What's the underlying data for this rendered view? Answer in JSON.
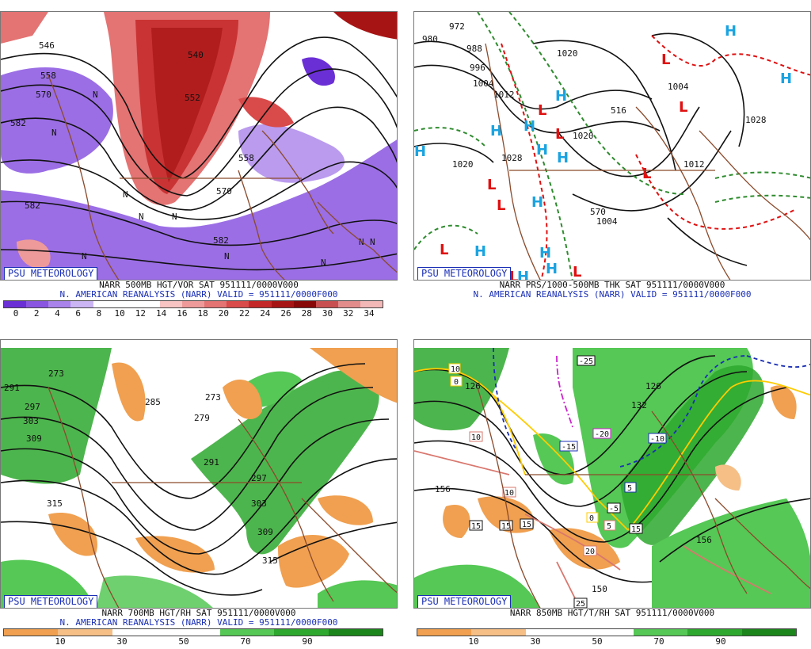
{
  "panels": [
    {
      "badge": "PSU METEOROLOGY",
      "line1": "NARR 500MB HGT/VOR SAT 951111/0000V000",
      "line2": "N. AMERICAN REANALYSIS (NARR) VALID = 951111/0000F000",
      "colorbar_ticks": [
        "0",
        "2",
        "4",
        "6",
        "8",
        "10",
        "12",
        "14",
        "16",
        "18",
        "20",
        "22",
        "24",
        "26",
        "28",
        "30",
        "32",
        "34"
      ],
      "colorbar_colors": [
        "#6b2fd6",
        "#8a55e0",
        "#a982ea",
        "#cbb5f2",
        "#ffffff",
        "#ffffff",
        "#ffffff",
        "#f7c3c3",
        "#ee9a9a",
        "#e47373",
        "#d94a4a",
        "#c42828",
        "#a71414",
        "#880808",
        "#c95050",
        "#e28c8c",
        "#f2b8b8"
      ],
      "contour_labels": [
        "546",
        "558",
        "570",
        "582",
        "582",
        "540",
        "552",
        "558",
        "570",
        "582"
      ],
      "vort_max_marks": [
        "N",
        "N",
        "N",
        "N",
        "N",
        "N",
        "N",
        "N",
        "N",
        "N"
      ]
    },
    {
      "badge": "PSU METEOROLOGY",
      "line1": "NARR PRS/1000-500MB THK SAT 951111/0000V000",
      "line2": "N. AMERICAN REANALYSIS (NARR) VALID = 951111/0000F000",
      "contour_labels": [
        "972",
        "980",
        "988",
        "996",
        "1004",
        "1012",
        "1020",
        "1020",
        "1028",
        "1020",
        "1004",
        "1004",
        "1012",
        "1028",
        "516",
        "570"
      ],
      "highs": [
        "H",
        "H",
        "H",
        "H",
        "H",
        "H",
        "H",
        "H",
        "H",
        "H",
        "H",
        "H",
        "H"
      ],
      "lows": [
        "L",
        "L",
        "L",
        "L",
        "L",
        "L",
        "L",
        "L",
        "L",
        "L"
      ]
    },
    {
      "badge": "PSU METEOROLOGY",
      "line1": "NARR 700MB HGT/RH SAT 951111/0000V000",
      "line2": "N. AMERICAN REANALYSIS (NARR) VALID = 951111/0000F000",
      "colorbar_ticks": [
        "10",
        "30",
        "50",
        "70",
        "90"
      ],
      "colorbar_colors": [
        "#f0a050",
        "#f5bf86",
        "#ffffff",
        "#ffffff",
        "#55c855",
        "#2ea82e",
        "#1c861c"
      ],
      "contour_labels": [
        "273",
        "291",
        "297",
        "303",
        "309",
        "285",
        "273",
        "279",
        "291",
        "297",
        "303",
        "309",
        "315",
        "315"
      ]
    },
    {
      "badge": "PSU METEOROLOGY",
      "line1": "NARR 850MB HGT/T/RH SAT 951111/0000V000",
      "line2": "",
      "colorbar_ticks": [
        "10",
        "30",
        "50",
        "70",
        "90"
      ],
      "colorbar_colors": [
        "#f0a050",
        "#f5bf86",
        "#ffffff",
        "#ffffff",
        "#55c855",
        "#2ea82e",
        "#1c861c"
      ],
      "contour_labels": [
        "126",
        "132",
        "126",
        "156",
        "150",
        "156"
      ],
      "temp_boxes": [
        "10",
        "0",
        "10",
        "-25",
        "-20",
        "-15",
        "-10",
        "10",
        "-5",
        "5",
        "0",
        "15",
        "15",
        "15",
        "15",
        "20",
        "25",
        "5"
      ]
    }
  ]
}
